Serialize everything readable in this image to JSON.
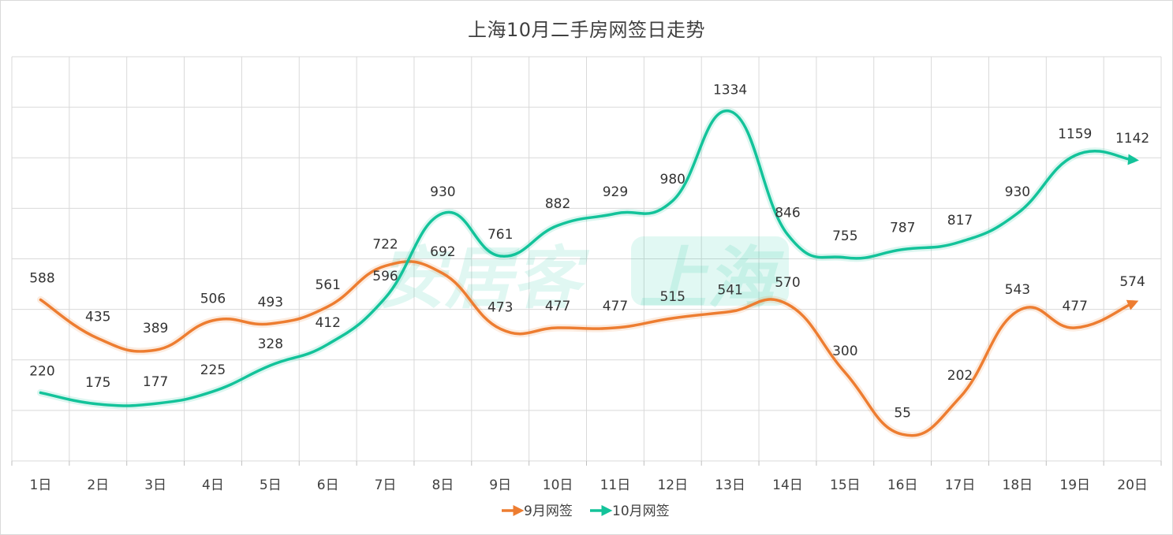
{
  "chart_data": {
    "type": "line",
    "title": "上海10月二手房网签日走势",
    "categories": [
      "1日",
      "2日",
      "3日",
      "4日",
      "5日",
      "6日",
      "7日",
      "8日",
      "9日",
      "10日",
      "11日",
      "12日",
      "13日",
      "14日",
      "15日",
      "16日",
      "17日",
      "18日",
      "19日",
      "20日"
    ],
    "series": [
      {
        "name": "9月网签",
        "color": "#ed7d31",
        "values": [
          588,
          435,
          389,
          506,
          493,
          561,
          722,
          692,
          473,
          477,
          477,
          515,
          541,
          570,
          300,
          55,
          202,
          543,
          477,
          574
        ]
      },
      {
        "name": "10月网签",
        "color": "#13c39a",
        "values": [
          220,
          175,
          177,
          225,
          328,
          412,
          596,
          930,
          761,
          882,
          929,
          980,
          1334,
          846,
          755,
          787,
          817,
          930,
          1159,
          1142
        ]
      }
    ],
    "ylim": [
      -50,
      1550
    ],
    "grid": true,
    "y_tick_labels_shown": false,
    "legend_position": "bottom",
    "smooth": true
  },
  "watermark": {
    "text": "安居客",
    "text2": "上海"
  }
}
